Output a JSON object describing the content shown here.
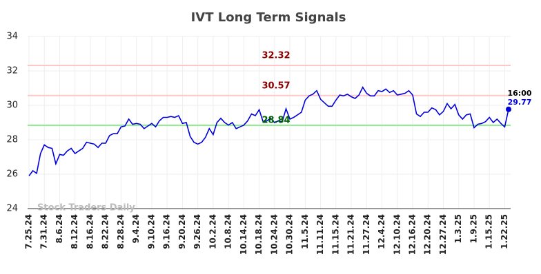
{
  "chart_data": {
    "type": "line",
    "title": "IVT Long Term Signals",
    "color": "#0000dd",
    "categories": [
      "7.25.24",
      null,
      null,
      null,
      "7.31.24",
      null,
      null,
      null,
      "8.6.24",
      null,
      null,
      null,
      "8.12.24",
      null,
      null,
      null,
      "8.16.24",
      null,
      null,
      null,
      "8.22.24",
      null,
      null,
      null,
      "8.28.24",
      null,
      null,
      null,
      "9.4.24",
      null,
      null,
      null,
      "9.10.24",
      null,
      null,
      null,
      "9.16.24",
      null,
      null,
      null,
      "9.20.24",
      null,
      null,
      null,
      "9.26.24",
      null,
      null,
      null,
      "10.2.24",
      null,
      null,
      null,
      "10.8.24",
      null,
      null,
      null,
      "10.14.24",
      null,
      null,
      null,
      "10.18.24",
      null,
      null,
      null,
      "10.24.24",
      null,
      null,
      null,
      "10.30.24",
      null,
      null,
      null,
      "11.5.24",
      null,
      null,
      null,
      "11.11.24",
      null,
      null,
      null,
      "11.15.24",
      null,
      null,
      null,
      "11.21.24",
      null,
      null,
      null,
      "11.27.24",
      null,
      null,
      null,
      "12.4.24",
      null,
      null,
      null,
      "12.10.24",
      null,
      null,
      null,
      "12.16.24",
      null,
      null,
      null,
      "12.20.24",
      null,
      null,
      null,
      "12.27.24",
      null,
      null,
      null,
      "1.3.25",
      null,
      null,
      null,
      "1.9.25",
      null,
      null,
      null,
      "1.15.25",
      null,
      null,
      null,
      "1.22.25",
      null
    ],
    "values": [
      25.9,
      26.2,
      26.05,
      27.2,
      27.7,
      27.55,
      27.5,
      26.6,
      27.15,
      27.1,
      27.35,
      27.5,
      27.2,
      27.35,
      27.5,
      27.85,
      27.8,
      27.75,
      27.55,
      27.8,
      27.8,
      28.25,
      28.35,
      28.35,
      28.75,
      28.8,
      29.2,
      28.9,
      28.95,
      28.9,
      28.65,
      28.8,
      28.95,
      28.75,
      29.1,
      29.3,
      29.3,
      29.35,
      29.3,
      29.4,
      28.95,
      29.0,
      28.2,
      27.85,
      27.75,
      27.85,
      28.15,
      28.65,
      28.3,
      29.0,
      29.25,
      29.0,
      28.85,
      29.0,
      28.65,
      28.75,
      28.85,
      29.1,
      29.5,
      29.4,
      29.75,
      29.05,
      29.1,
      29.25,
      29.0,
      29.1,
      29.05,
      29.8,
      29.2,
      29.3,
      29.45,
      29.6,
      30.3,
      30.55,
      30.65,
      30.85,
      30.35,
      30.15,
      29.95,
      29.95,
      30.3,
      30.6,
      30.55,
      30.65,
      30.5,
      30.4,
      30.6,
      31.05,
      30.7,
      30.55,
      30.55,
      30.85,
      30.8,
      30.95,
      30.75,
      30.85,
      30.6,
      30.65,
      30.7,
      30.85,
      30.6,
      29.5,
      29.35,
      29.6,
      29.6,
      29.85,
      29.75,
      29.45,
      29.65,
      30.1,
      29.8,
      30.05,
      29.45,
      29.2,
      29.45,
      29.5,
      28.7,
      28.9,
      28.95,
      29.05,
      29.3,
      29.0,
      29.2,
      28.95,
      28.75,
      29.77
    ],
    "ylim": [
      24,
      34
    ],
    "yticks": [
      24,
      26,
      28,
      30,
      32,
      34
    ],
    "grid": true,
    "hlines": [
      {
        "value": 32.32,
        "color": "#ffc8c8",
        "label_color": "#8b0000"
      },
      {
        "value": 30.57,
        "color": "#ffc8c8",
        "label_color": "#8b0000"
      },
      {
        "value": 28.84,
        "color": "#90ee90",
        "label_color": "#006400"
      }
    ],
    "last_time": "16:00",
    "watermark": "Stock Traders Daily"
  }
}
